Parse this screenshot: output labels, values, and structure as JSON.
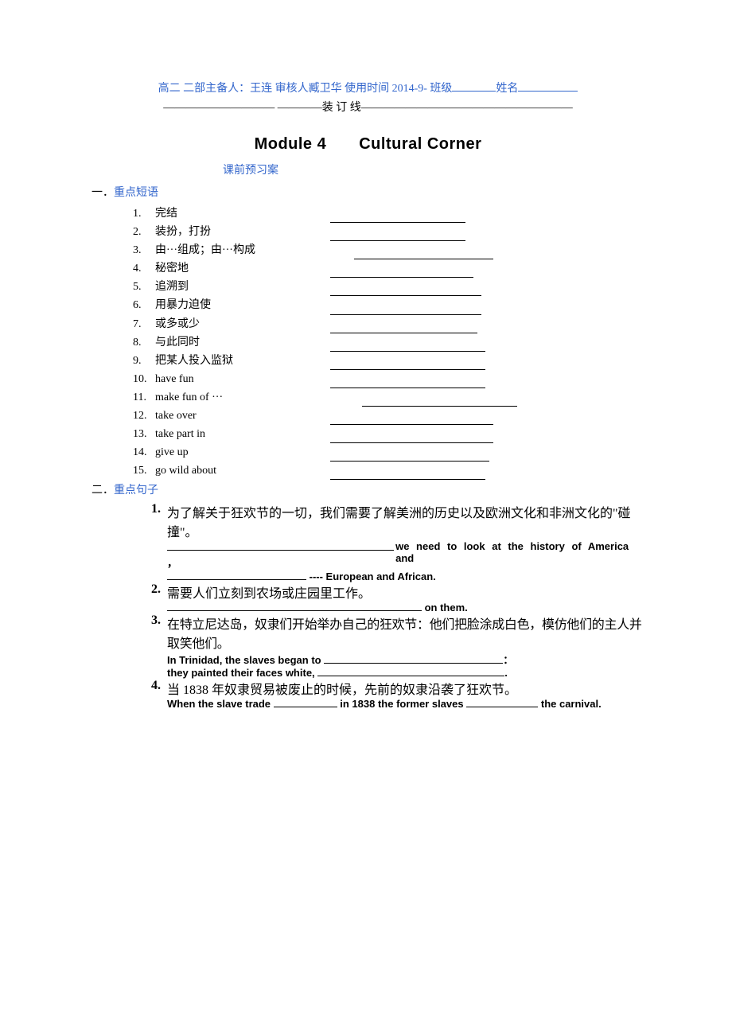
{
  "header": {
    "blueText": "高二 二部主备人：王连 审核人臧卫华 使用时间 2014-9- 班级",
    "nameLabel": "姓名",
    "bindingLine": "—————————— ————装 订 线———————————————————"
  },
  "title": "Module 4　　Cultural Corner",
  "subtitle": "课前预习案",
  "sectionOne": {
    "label": "一．重点短语",
    "items": [
      {
        "num": "1.",
        "text": "完结",
        "blankWidth": 170,
        "indent": 0
      },
      {
        "num": "2.",
        "text": "装扮，打扮",
        "blankWidth": 170,
        "indent": 0
      },
      {
        "num": "3.",
        "text": "由···组成；由···构成",
        "blankWidth": 175,
        "indent": 30
      },
      {
        "num": "4.",
        "text": "秘密地",
        "blankWidth": 180,
        "indent": 0
      },
      {
        "num": "5.",
        "text": "追溯到",
        "blankWidth": 190,
        "indent": 0
      },
      {
        "num": "6.",
        "text": "用暴力迫使",
        "blankWidth": 190,
        "indent": 0
      },
      {
        "num": "7.",
        "text": "或多或少",
        "blankWidth": 185,
        "indent": 0
      },
      {
        "num": "8.",
        "text": "与此同时",
        "blankWidth": 195,
        "indent": 0
      },
      {
        "num": "9.",
        "text": "把某人投入监狱",
        "blankWidth": 195,
        "indent": 0
      },
      {
        "num": "10.",
        "text": "have fun",
        "blankWidth": 195,
        "indent": 0
      },
      {
        "num": "11.",
        "text": "make fun of ···",
        "blankWidth": 195,
        "indent": 40
      },
      {
        "num": "12.",
        "text": "take over",
        "blankWidth": 205,
        "indent": 0
      },
      {
        "num": "13.",
        "text": "take part in",
        "blankWidth": 205,
        "indent": 0
      },
      {
        "num": "14.",
        "text": "give up",
        "blankWidth": 200,
        "indent": 0
      },
      {
        "num": "15.",
        "text": "go wild about",
        "blankWidth": 195,
        "indent": 0
      }
    ]
  },
  "sectionTwo": {
    "label": "二．重点句子",
    "items": [
      {
        "num": "1.",
        "chinese": "为了解关于狂欢节的一切，我们需要了解美洲的历史以及欧洲文化和非洲文化的\"碰撞\"。",
        "englishBefore": "",
        "blankWidth1": 285,
        "englishMid1": "，we need to look at the history of America and",
        "blankWidth2": 175,
        "englishAfter": " ---- European and African."
      },
      {
        "num": "2.",
        "chinese": "需要人们立刻到农场或庄园里工作。",
        "blankWidth1": 320,
        "englishAfter": " on them."
      },
      {
        "num": "3.",
        "chinese": "在特立尼达岛，奴隶们开始举办自己的狂欢节：他们把脸涂成白色，模仿他们的主人并取笑他们。",
        "englishLine1Before": "In Trinidad, the slaves began to ",
        "blankWidth1": 225,
        "englishLine1After": "：",
        "englishLine2Before": "they painted their faces white, ",
        "blankWidth2": 235,
        "englishLine2After": "."
      },
      {
        "num": "4.",
        "chinese": "当 1838 年奴隶贸易被废止的时候，先前的奴隶沿袭了狂欢节。",
        "englishBefore": "When the slave trade ",
        "blankWidth1": 80,
        "englishMid": " in 1838 the former slaves ",
        "blankWidth2": 90,
        "englishAfter": " the carnival."
      }
    ]
  }
}
